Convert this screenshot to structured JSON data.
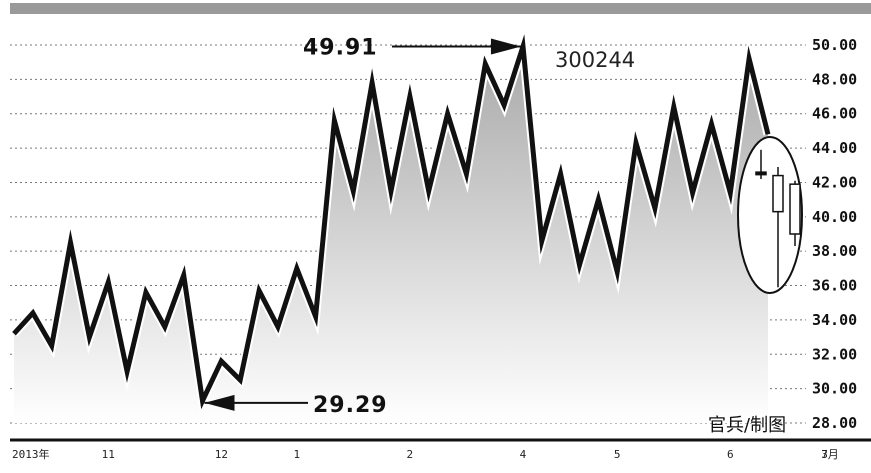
{
  "chart_data": {
    "type": "line",
    "title": "300244",
    "credit": "官兵/制图",
    "ylim": [
      28,
      50
    ],
    "y_ticks": [
      "28.00",
      "30.00",
      "32.00",
      "34.00",
      "36.00",
      "38.00",
      "40.00",
      "42.00",
      "44.00",
      "46.00",
      "48.00",
      "50.00"
    ],
    "x_ticks": [
      {
        "label": "2013年",
        "i": 0
      },
      {
        "label": "11",
        "i": 5
      },
      {
        "label": "12",
        "i": 11
      },
      {
        "label": "1",
        "i": 15
      },
      {
        "label": "2",
        "i": 21
      },
      {
        "label": "4",
        "i": 27
      },
      {
        "label": "5",
        "i": 32
      },
      {
        "label": "6",
        "i": 38
      },
      {
        "label": "7",
        "i": 43
      },
      {
        "label": "3月",
        "i": 49
      }
    ],
    "series": [
      {
        "values": [
          33.2,
          34.4,
          32.5,
          38.5,
          33.0,
          36.2,
          31.0,
          35.6,
          33.6,
          36.6,
          29.29,
          31.6,
          30.5,
          35.7,
          33.6,
          37.0,
          34.2,
          45.6,
          41.5,
          47.8,
          41.5,
          47.0,
          41.5,
          46.0,
          42.5,
          48.9,
          46.5,
          49.91,
          38.6,
          42.5,
          37.2,
          41.0,
          36.8,
          44.3,
          40.5,
          46.4,
          41.4,
          45.4,
          41.4,
          49.2,
          44.8
        ]
      }
    ],
    "annotations": [
      {
        "label": "49.91",
        "value": 49.91
      },
      {
        "label": "29.29",
        "value": 29.29
      }
    ],
    "candles": [
      {
        "open": 42.6,
        "close": 42.6,
        "high": 43.9,
        "low": 42.2
      },
      {
        "open": 40.3,
        "close": 42.4,
        "high": 42.9,
        "low": 35.9
      },
      {
        "open": 39.0,
        "close": 41.9,
        "high": 42.1,
        "low": 38.3
      }
    ],
    "grid": true,
    "colors": {
      "line": "#111111",
      "fill_top": "#a8a8a8",
      "fill_bottom": "#ffffff",
      "grid": "#777777",
      "top_bar": "#9a9a9a"
    }
  }
}
